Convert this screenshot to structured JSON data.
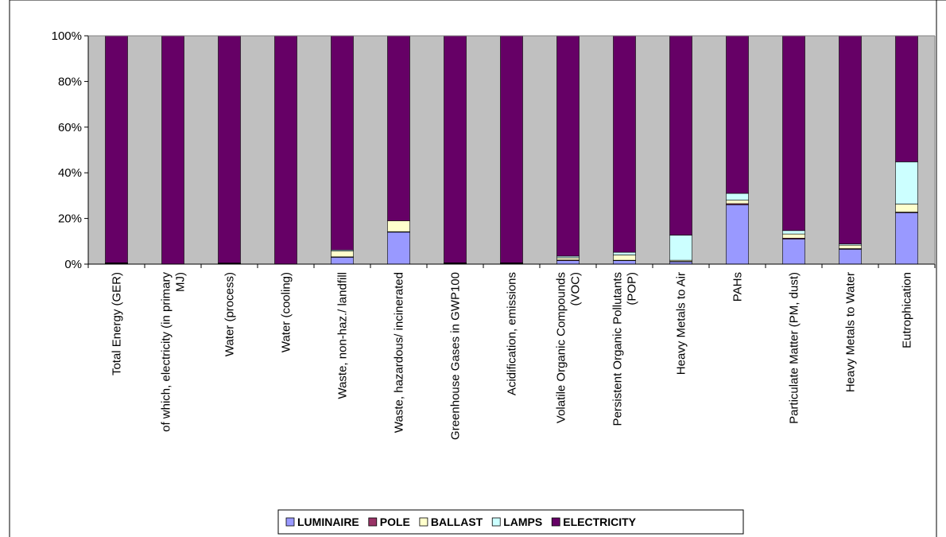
{
  "chart_data": {
    "type": "bar",
    "stacked": true,
    "percent_stacked": true,
    "title": "",
    "xlabel": "",
    "ylabel": "",
    "ylim": [
      0,
      100
    ],
    "y_ticks": [
      "0%",
      "20%",
      "40%",
      "60%",
      "80%",
      "100%"
    ],
    "y_tick_values": [
      0,
      20,
      40,
      60,
      80,
      100
    ],
    "grid": false,
    "plot_background": "#C0C0C0",
    "legend_position": "bottom",
    "categories": [
      "Total Energy (GER)",
      "of which, electricity (in primary MJ)",
      "Water (process)",
      "Water (cooling)",
      "Waste, non-haz./ landfill",
      "Waste, hazardous/ incinerated",
      "Greenhouse Gases in GWP100",
      "Acidification, emissions",
      "Volatile Organic Compounds (VOC)",
      "Persistent Organic Pollutants (POP)",
      "Heavy Metals to Air",
      "PAHs",
      "Particulate Matter (PM, dust)",
      "Heavy Metals to Water",
      "Eutrophication"
    ],
    "category_lines": [
      [
        "Total Energy (GER)"
      ],
      [
        "of which, electricity (in primary",
        "MJ)"
      ],
      [
        "Water (process)"
      ],
      [
        "Water (cooling)"
      ],
      [
        "Waste, non-haz./ landfill"
      ],
      [
        "Waste, hazardous/ incinerated"
      ],
      [
        "Greenhouse Gases in GWP100"
      ],
      [
        "Acidification, emissions"
      ],
      [
        "Volatile Organic Compounds",
        "(VOC)"
      ],
      [
        "Persistent Organic Pollutants",
        "(POP)"
      ],
      [
        "Heavy Metals to Air"
      ],
      [
        "PAHs"
      ],
      [
        "Particulate Matter (PM, dust)"
      ],
      [
        "Heavy Metals to Water"
      ],
      [
        "Eutrophication"
      ]
    ],
    "series": [
      {
        "name": "LUMINAIRE",
        "color": "#9999FF",
        "values": [
          0.3,
          0,
          0.2,
          0,
          3,
          14,
          0.3,
          0.3,
          1.5,
          1.5,
          1,
          26,
          11,
          6.5,
          22.5
        ]
      },
      {
        "name": "POLE",
        "color": "#993366",
        "values": [
          0.1,
          0,
          0.1,
          0,
          0.2,
          0.2,
          0.1,
          0.1,
          0.3,
          0.2,
          0.2,
          0.5,
          0.4,
          0.3,
          0.3
        ]
      },
      {
        "name": "BALLAST",
        "color": "#FFFFCC",
        "values": [
          0.1,
          0,
          0.1,
          0,
          2.5,
          4.8,
          0.1,
          0.1,
          1,
          2.3,
          0.5,
          1.5,
          1.8,
          1.5,
          3.5
        ]
      },
      {
        "name": "LAMPS",
        "color": "#CCFFFF",
        "values": [
          0.1,
          0,
          0.1,
          0,
          0.5,
          0,
          0.1,
          0.1,
          0.7,
          1.2,
          11,
          3,
          1.5,
          0.5,
          18.5
        ]
      },
      {
        "name": "ELECTRICITY",
        "color": "#660066",
        "values": [
          99.4,
          100,
          99.5,
          100,
          93.8,
          81,
          99.4,
          99.4,
          96.5,
          94.8,
          87.3,
          69,
          85.3,
          91.2,
          55.2
        ]
      }
    ]
  }
}
